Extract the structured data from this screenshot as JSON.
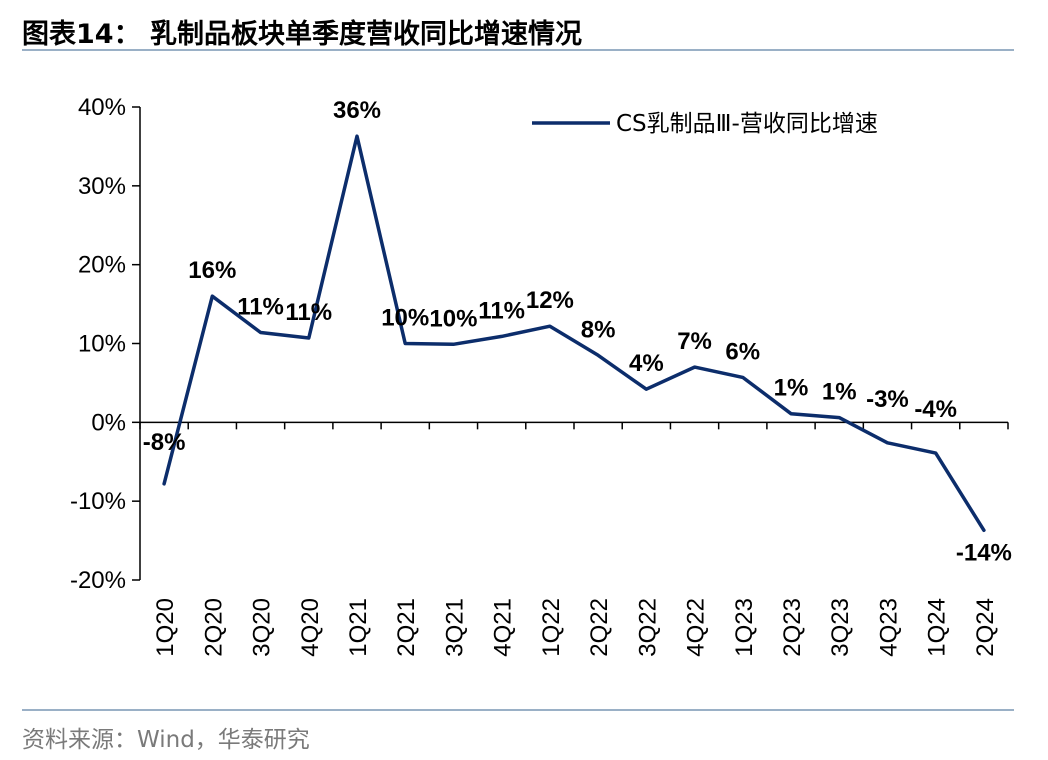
{
  "header": {
    "title": "图表14：  乳制品板块单季度营收同比增速情况"
  },
  "footer": {
    "source": "资料来源：Wind，华泰研究"
  },
  "colors": {
    "series_line": "#0c2d6b",
    "rule": "#9ab0c6"
  },
  "chart_data": {
    "type": "line",
    "title": "乳制品板块单季度营收同比增速情况",
    "xlabel": "",
    "ylabel": "",
    "categories": [
      "1Q20",
      "2Q20",
      "3Q20",
      "4Q20",
      "1Q21",
      "2Q21",
      "3Q21",
      "4Q21",
      "1Q22",
      "2Q22",
      "3Q22",
      "4Q22",
      "1Q23",
      "2Q23",
      "3Q23",
      "4Q23",
      "1Q24",
      "2Q24"
    ],
    "series": [
      {
        "name": "CS乳制品Ⅲ-营收同比增速",
        "values": [
          -7.8,
          16.0,
          11.4,
          10.7,
          36.3,
          10.0,
          9.9,
          10.9,
          12.2,
          8.5,
          4.2,
          7.0,
          5.7,
          1.1,
          0.6,
          -2.6,
          -3.9,
          -13.7
        ],
        "labels": [
          "-8%",
          "16%",
          "11%",
          "11%",
          "36%",
          "10%",
          "10%",
          "11%",
          "12%",
          "8%",
          "4%",
          "7%",
          "6%",
          "1%",
          "1%",
          "-3%",
          "-4%",
          "-14%"
        ]
      }
    ],
    "ylim": [
      -20,
      40
    ],
    "yticks": [
      -20,
      -10,
      0,
      10,
      20,
      30,
      40
    ],
    "ytick_labels": [
      "-20%",
      "-10%",
      "0%",
      "10%",
      "20%",
      "30%",
      "40%"
    ],
    "grid": false,
    "legend_position": "top-right"
  }
}
